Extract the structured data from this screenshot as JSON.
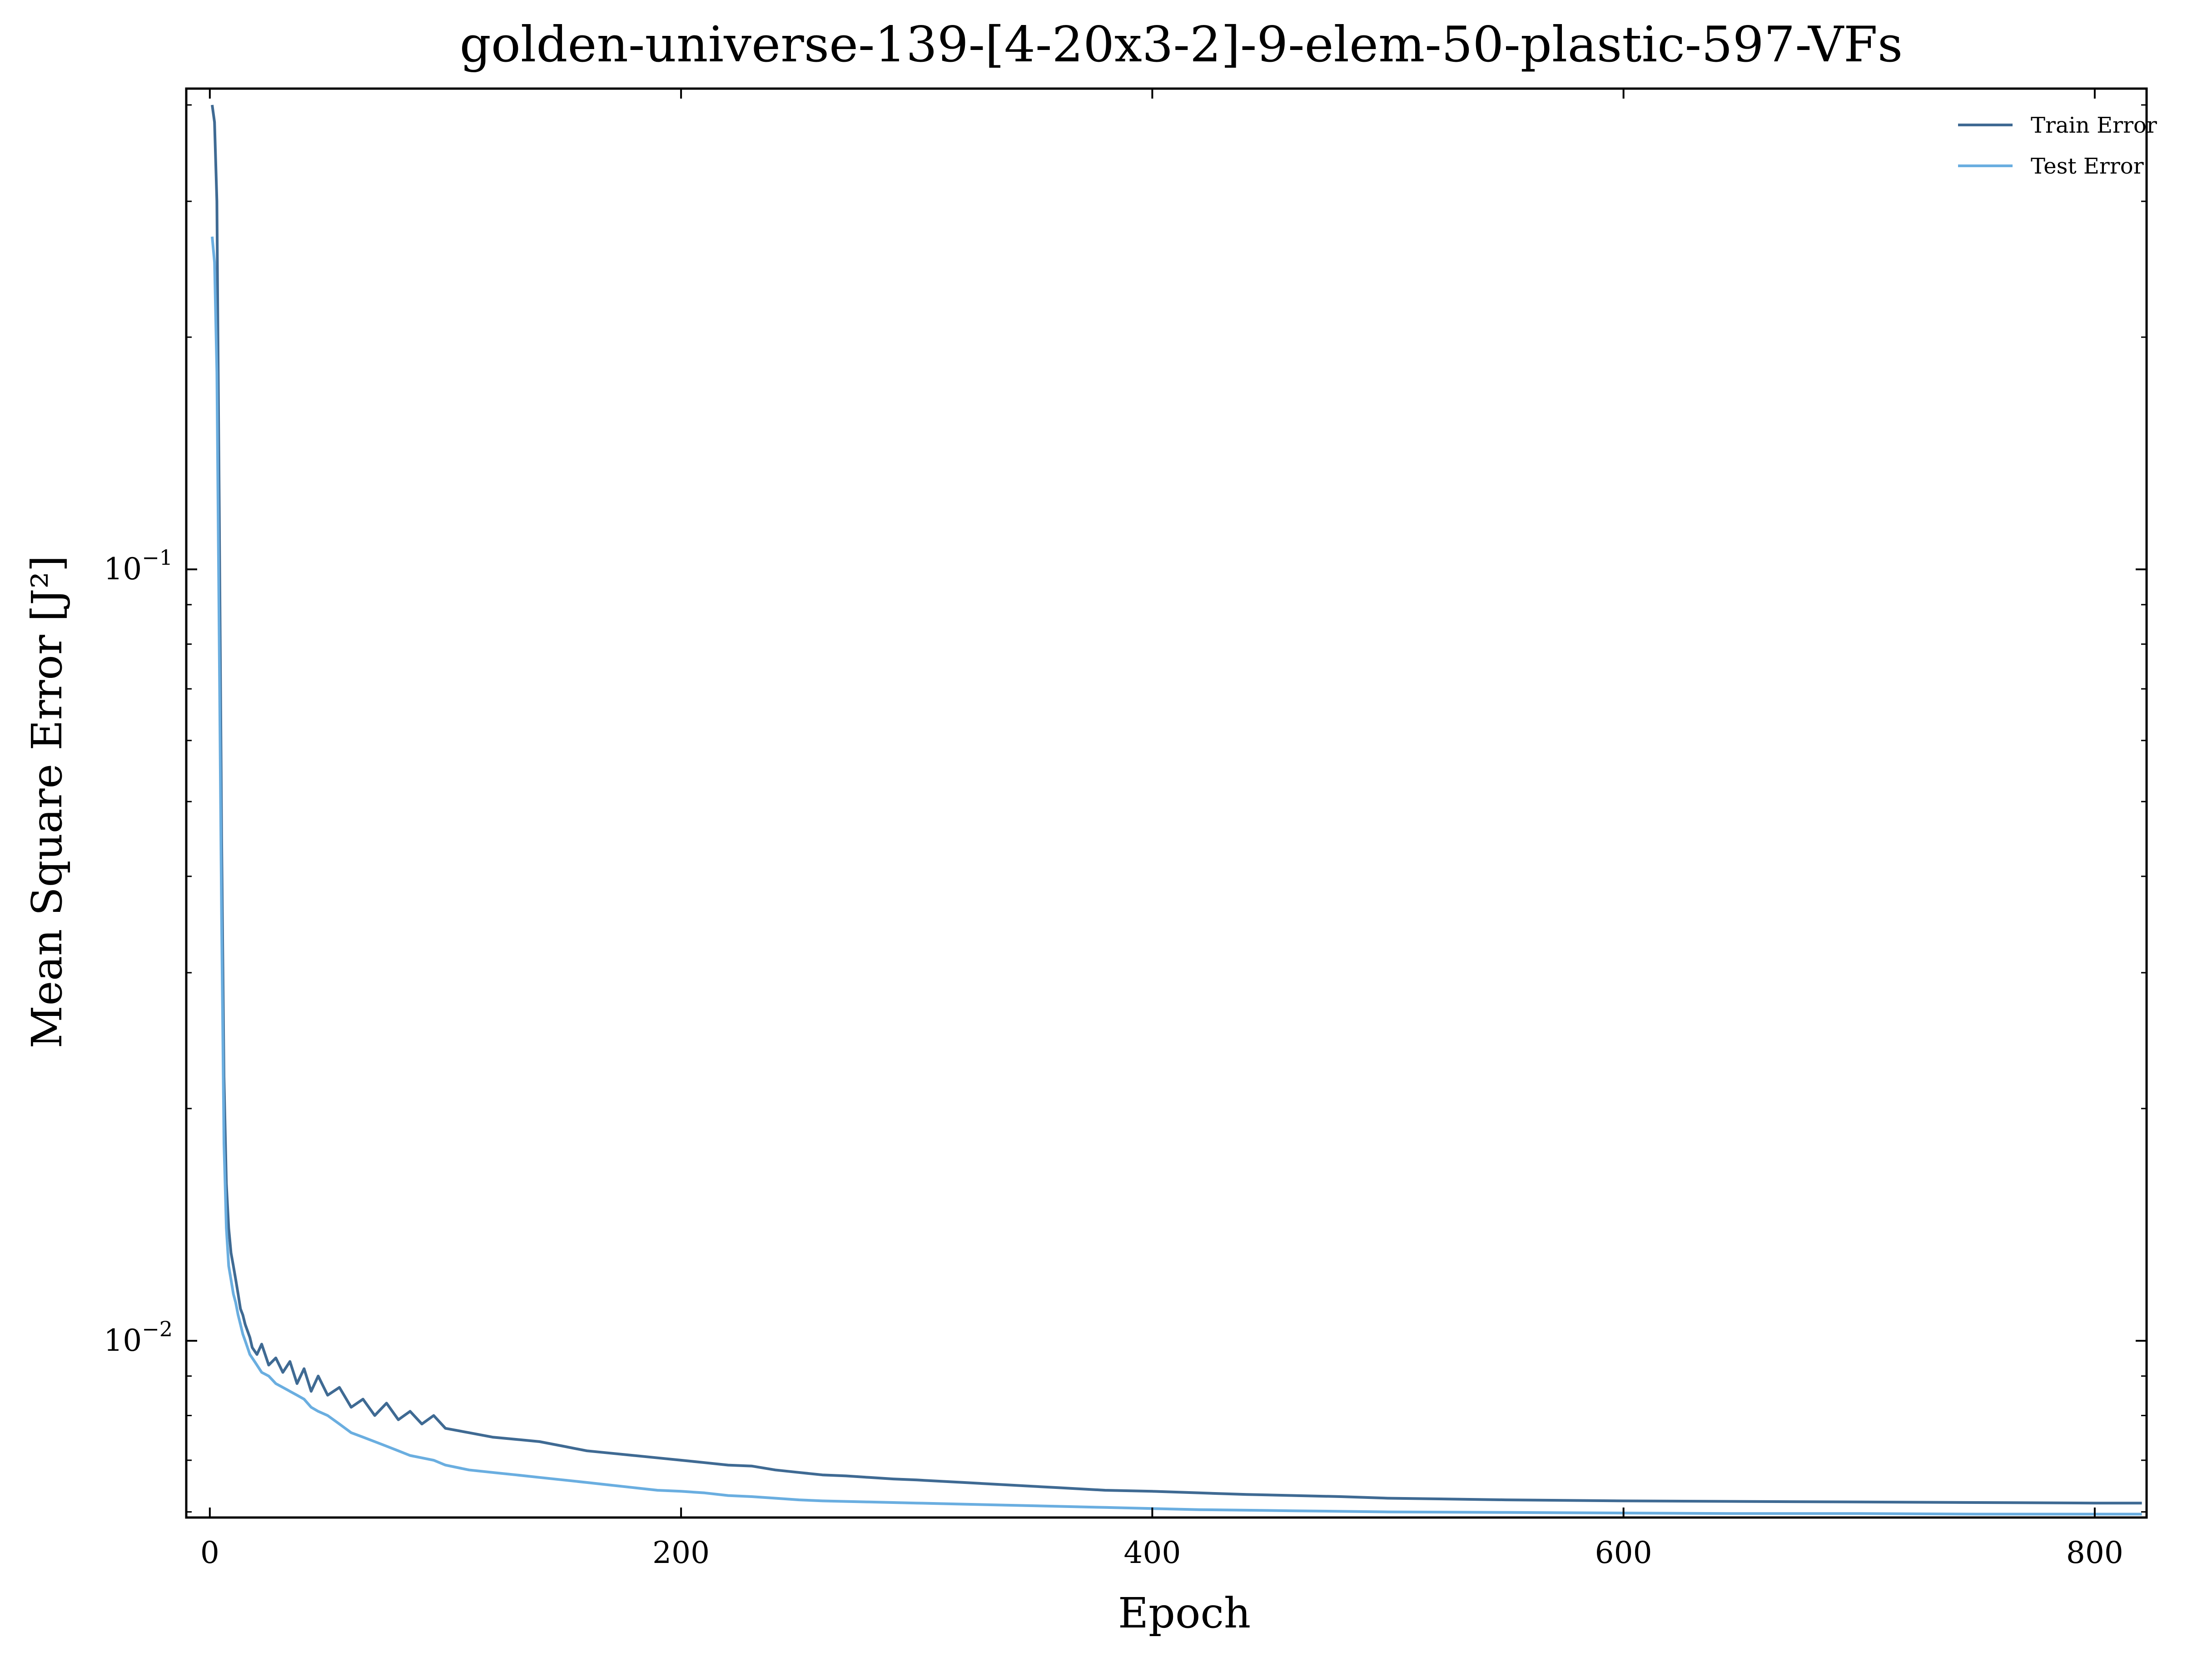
{
  "chart_data": {
    "type": "line",
    "title": "golden-universe-139-[4-20x3-2]-9-elem-50-plastic-597-VFs",
    "xlabel": "Epoch",
    "ylabel": "Mean Square Error [J²]",
    "xlim": [
      -10,
      822
    ],
    "ylim": [
      0.0059,
      0.42
    ],
    "yscale": "log",
    "grid": false,
    "legend_position": "top-right",
    "x_ticks": [
      0,
      200,
      400,
      600,
      800
    ],
    "y_ticks": [
      {
        "value": 0.1,
        "base": "10",
        "exp": "−1"
      },
      {
        "value": 0.01,
        "base": "10",
        "exp": "−2"
      }
    ],
    "series": [
      {
        "name": "Train Error",
        "color": "#3f6a93",
        "x": [
          1,
          2,
          3,
          4,
          5,
          6,
          7,
          8,
          9,
          10,
          11,
          12,
          13,
          14,
          15,
          16,
          17,
          18,
          19,
          20,
          22,
          25,
          28,
          31,
          34,
          37,
          40,
          43,
          46,
          50,
          55,
          60,
          65,
          70,
          75,
          80,
          85,
          90,
          95,
          100,
          110,
          120,
          130,
          140,
          150,
          160,
          170,
          180,
          190,
          200,
          210,
          220,
          230,
          240,
          250,
          260,
          270,
          280,
          290,
          300,
          320,
          340,
          360,
          380,
          400,
          420,
          440,
          460,
          480,
          500,
          550,
          600,
          650,
          700,
          750,
          800,
          820
        ],
        "y": [
          0.4,
          0.38,
          0.3,
          0.12,
          0.045,
          0.022,
          0.016,
          0.014,
          0.013,
          0.0125,
          0.012,
          0.0115,
          0.011,
          0.0108,
          0.0105,
          0.0103,
          0.0101,
          0.0098,
          0.0097,
          0.0096,
          0.0099,
          0.0093,
          0.0095,
          0.0091,
          0.0094,
          0.0088,
          0.0092,
          0.0086,
          0.009,
          0.0085,
          0.0087,
          0.0082,
          0.0084,
          0.008,
          0.0083,
          0.0079,
          0.0081,
          0.0078,
          0.008,
          0.0077,
          0.0076,
          0.0075,
          0.00745,
          0.0074,
          0.0073,
          0.0072,
          0.00715,
          0.0071,
          0.00705,
          0.007,
          0.00695,
          0.0069,
          0.00688,
          0.0068,
          0.00675,
          0.0067,
          0.00668,
          0.00665,
          0.00662,
          0.0066,
          0.00655,
          0.0065,
          0.00645,
          0.0064,
          0.00638,
          0.00635,
          0.00632,
          0.0063,
          0.00628,
          0.00625,
          0.00622,
          0.0062,
          0.00619,
          0.00618,
          0.00617,
          0.00616,
          0.00616
        ]
      },
      {
        "name": "Test Error",
        "color": "#6aaee0",
        "x": [
          1,
          2,
          3,
          4,
          5,
          6,
          7,
          8,
          9,
          10,
          11,
          12,
          13,
          14,
          15,
          16,
          17,
          18,
          19,
          20,
          22,
          25,
          28,
          31,
          34,
          37,
          40,
          43,
          46,
          50,
          55,
          60,
          65,
          70,
          75,
          80,
          85,
          90,
          95,
          100,
          110,
          120,
          130,
          140,
          150,
          160,
          170,
          180,
          190,
          200,
          210,
          220,
          230,
          240,
          250,
          260,
          270,
          280,
          290,
          300,
          320,
          340,
          360,
          380,
          400,
          420,
          440,
          460,
          480,
          500,
          550,
          600,
          650,
          700,
          750,
          800,
          820
        ],
        "y": [
          0.27,
          0.25,
          0.18,
          0.08,
          0.035,
          0.018,
          0.014,
          0.0125,
          0.012,
          0.0115,
          0.0112,
          0.0108,
          0.0105,
          0.0102,
          0.01,
          0.0098,
          0.0096,
          0.0095,
          0.0094,
          0.0093,
          0.0091,
          0.009,
          0.0088,
          0.0087,
          0.0086,
          0.0085,
          0.0084,
          0.0082,
          0.0081,
          0.008,
          0.0078,
          0.0076,
          0.0075,
          0.0074,
          0.0073,
          0.0072,
          0.0071,
          0.00705,
          0.007,
          0.0069,
          0.0068,
          0.00675,
          0.0067,
          0.00665,
          0.0066,
          0.00655,
          0.0065,
          0.00645,
          0.0064,
          0.00638,
          0.00635,
          0.0063,
          0.00628,
          0.00625,
          0.00622,
          0.0062,
          0.00619,
          0.00618,
          0.00617,
          0.00616,
          0.00614,
          0.00612,
          0.0061,
          0.00608,
          0.00606,
          0.00604,
          0.00603,
          0.00602,
          0.00601,
          0.006,
          0.00599,
          0.00598,
          0.00597,
          0.00597,
          0.00596,
          0.00596,
          0.00596
        ]
      }
    ]
  }
}
